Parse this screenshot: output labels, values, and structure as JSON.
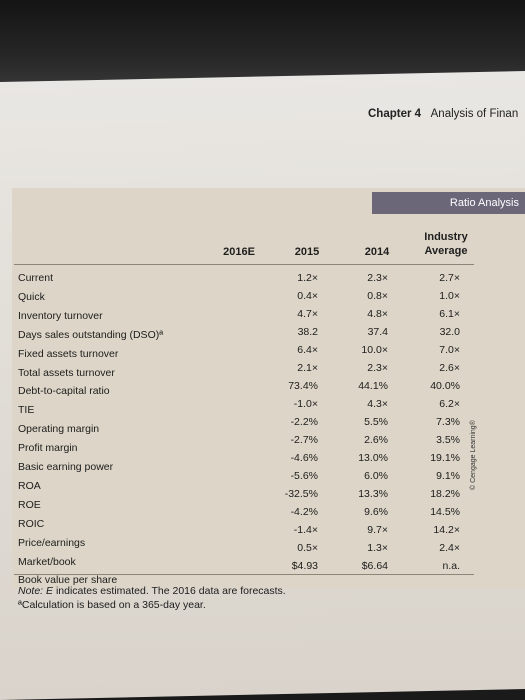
{
  "header": {
    "chapter": "Chapter 4",
    "title": "Analysis of Finan"
  },
  "band": {
    "label": "Ratio Analysis"
  },
  "columns": [
    "2016E",
    "2015",
    "2014",
    "Industry",
    "Average"
  ],
  "rows": [
    {
      "label": "Current",
      "c2015": "1.2×",
      "c2014": "2.3×",
      "ind": "2.7×"
    },
    {
      "label": "Quick",
      "c2015": "0.4×",
      "c2014": "0.8×",
      "ind": "1.0×"
    },
    {
      "label": "Inventory turnover",
      "c2015": "4.7×",
      "c2014": "4.8×",
      "ind": "6.1×"
    },
    {
      "label": "Days sales outstanding (DSO)ª",
      "c2015": "38.2",
      "c2014": "37.4",
      "ind": "32.0"
    },
    {
      "label": "Fixed assets turnover",
      "c2015": "6.4×",
      "c2014": "10.0×",
      "ind": "7.0×"
    },
    {
      "label": "Total assets turnover",
      "c2015": "2.1×",
      "c2014": "2.3×",
      "ind": "2.6×"
    },
    {
      "label": "Debt-to-capital ratio",
      "c2015": "73.4%",
      "c2014": "44.1%",
      "ind": "40.0%"
    },
    {
      "label": "TIE",
      "c2015": "-1.0×",
      "c2014": "4.3×",
      "ind": "6.2×"
    },
    {
      "label": "Operating margin",
      "c2015": "-2.2%",
      "c2014": "5.5%",
      "ind": "7.3%"
    },
    {
      "label": "Profit margin",
      "c2015": "-2.7%",
      "c2014": "2.6%",
      "ind": "3.5%"
    },
    {
      "label": "Basic earning power",
      "c2015": "-4.6%",
      "c2014": "13.0%",
      "ind": "19.1%"
    },
    {
      "label": "ROA",
      "c2015": "-5.6%",
      "c2014": "6.0%",
      "ind": "9.1%"
    },
    {
      "label": "ROE",
      "c2015": "-32.5%",
      "c2014": "13.3%",
      "ind": "18.2%"
    },
    {
      "label": "ROIC",
      "c2015": "-4.2%",
      "c2014": "9.6%",
      "ind": "14.5%"
    },
    {
      "label": "Price/earnings",
      "c2015": "-1.4×",
      "c2014": "9.7×",
      "ind": "14.2×"
    },
    {
      "label": "Market/book",
      "c2015": "0.5×",
      "c2014": "1.3×",
      "ind": "2.4×"
    },
    {
      "label": "Book value per share",
      "c2015": "$4.93",
      "c2014": "$6.64",
      "ind": "n.a."
    }
  ],
  "note": {
    "line1_prefix": "Note: E",
    "line1_rest": " indicates estimated. The 2016 data are forecasts.",
    "line2": "ªCalculation is based on a 365-day year."
  },
  "side_credit": "© Cengage Learning®"
}
